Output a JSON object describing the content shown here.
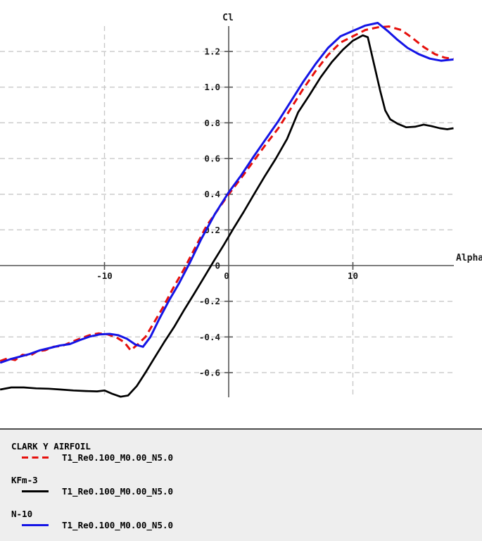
{
  "chart_data": {
    "type": "line",
    "title": "",
    "xlabel": "Alpha",
    "ylabel": "Cl",
    "xlim": [
      -18.4,
      18.2
    ],
    "ylim": [
      -0.88,
      1.49
    ],
    "grid": "dashed",
    "legend_position": "bottom",
    "axis_color": "#555555",
    "grid_color": "#c9c9c9",
    "x_ticks": [
      {
        "v": -10,
        "label": "-10"
      },
      {
        "v": 0,
        "label": "0"
      },
      {
        "v": 10,
        "label": "10"
      }
    ],
    "y_ticks": [
      {
        "v": 1.2,
        "label": "1.2"
      },
      {
        "v": 1.0,
        "label": "1.0"
      },
      {
        "v": 0.8,
        "label": "0.8"
      },
      {
        "v": 0.6,
        "label": "0.6"
      },
      {
        "v": 0.4,
        "label": "0.4"
      },
      {
        "v": 0.2,
        "label": "0.2"
      },
      {
        "v": 0,
        "label": "0"
      },
      {
        "v": -0.2,
        "label": "-0.2"
      },
      {
        "v": -0.4,
        "label": "-0.4"
      },
      {
        "v": -0.6,
        "label": "-0.6"
      }
    ],
    "series": [
      {
        "name": "CLARK Y AIRFOIL",
        "polar": "T1_Re0.100_M0.00_N5.0",
        "color": "#e6100c",
        "style": "dashed",
        "width": 3,
        "points": [
          [
            -18.4,
            -0.535
          ],
          [
            -17.8,
            -0.52
          ],
          [
            -17.2,
            -0.53
          ],
          [
            -16.6,
            -0.5
          ],
          [
            -16.0,
            -0.505
          ],
          [
            -15.4,
            -0.48
          ],
          [
            -14.8,
            -0.475
          ],
          [
            -14.1,
            -0.455
          ],
          [
            -13.4,
            -0.45
          ],
          [
            -12.7,
            -0.43
          ],
          [
            -12.0,
            -0.41
          ],
          [
            -11.2,
            -0.39
          ],
          [
            -10.5,
            -0.38
          ],
          [
            -9.8,
            -0.385
          ],
          [
            -9.1,
            -0.4
          ],
          [
            -8.4,
            -0.43
          ],
          [
            -7.9,
            -0.475
          ],
          [
            -7.3,
            -0.44
          ],
          [
            -6.7,
            -0.4
          ],
          [
            -6.1,
            -0.33
          ],
          [
            -5.3,
            -0.235
          ],
          [
            -4.5,
            -0.13
          ],
          [
            -3.6,
            -0.02
          ],
          [
            -2.7,
            0.1
          ],
          [
            -1.8,
            0.22
          ],
          [
            -0.9,
            0.31
          ],
          [
            0,
            0.4
          ],
          [
            1,
            0.49
          ],
          [
            2,
            0.585
          ],
          [
            3,
            0.68
          ],
          [
            4,
            0.77
          ],
          [
            5,
            0.88
          ],
          [
            6,
            0.99
          ],
          [
            7,
            1.09
          ],
          [
            8,
            1.18
          ],
          [
            9,
            1.25
          ],
          [
            10,
            1.285
          ],
          [
            11,
            1.32
          ],
          [
            12,
            1.335
          ],
          [
            12.9,
            1.34
          ],
          [
            13.9,
            1.32
          ],
          [
            14.8,
            1.275
          ],
          [
            15.7,
            1.225
          ],
          [
            16.6,
            1.185
          ],
          [
            17.4,
            1.165
          ],
          [
            18.1,
            1.158
          ]
        ]
      },
      {
        "name": "KFm-3",
        "polar": "T1_Re0.100_M0.00_N5.0",
        "color": "#000000",
        "style": "solid",
        "width": 2.7,
        "points": [
          [
            -18.4,
            -0.695
          ],
          [
            -17.5,
            -0.683
          ],
          [
            -16.5,
            -0.683
          ],
          [
            -15.5,
            -0.688
          ],
          [
            -14.5,
            -0.69
          ],
          [
            -13.5,
            -0.695
          ],
          [
            -12.5,
            -0.7
          ],
          [
            -11.5,
            -0.703
          ],
          [
            -10.6,
            -0.705
          ],
          [
            -10.0,
            -0.7
          ],
          [
            -9.4,
            -0.718
          ],
          [
            -8.7,
            -0.735
          ],
          [
            -8.1,
            -0.728
          ],
          [
            -7.4,
            -0.675
          ],
          [
            -6.7,
            -0.6
          ],
          [
            -6.0,
            -0.52
          ],
          [
            -5.2,
            -0.43
          ],
          [
            -4.4,
            -0.345
          ],
          [
            -3.6,
            -0.25
          ],
          [
            -2.8,
            -0.16
          ],
          [
            -2.0,
            -0.068
          ],
          [
            -1.2,
            0.025
          ],
          [
            -0.4,
            0.115
          ],
          [
            0.4,
            0.21
          ],
          [
            1.2,
            0.3
          ],
          [
            2.0,
            0.395
          ],
          [
            2.9,
            0.5
          ],
          [
            3.8,
            0.6
          ],
          [
            4.7,
            0.71
          ],
          [
            5.6,
            0.86
          ],
          [
            6.5,
            0.955
          ],
          [
            7.4,
            1.055
          ],
          [
            8.3,
            1.14
          ],
          [
            9.2,
            1.21
          ],
          [
            10.0,
            1.26
          ],
          [
            10.8,
            1.29
          ],
          [
            11.2,
            1.28
          ],
          [
            12.2,
            0.98
          ],
          [
            12.6,
            0.87
          ],
          [
            13.0,
            0.82
          ],
          [
            13.6,
            0.795
          ],
          [
            14.3,
            0.775
          ],
          [
            15.0,
            0.778
          ],
          [
            15.7,
            0.79
          ],
          [
            16.3,
            0.782
          ],
          [
            17.0,
            0.77
          ],
          [
            17.6,
            0.764
          ],
          [
            18.1,
            0.77
          ]
        ]
      },
      {
        "name": "N-10",
        "polar": "T1_Re0.100_M0.00_N5.0",
        "color": "#1414e6",
        "style": "solid",
        "width": 3,
        "points": [
          [
            -18.4,
            -0.545
          ],
          [
            -17.6,
            -0.525
          ],
          [
            -16.8,
            -0.51
          ],
          [
            -16.0,
            -0.495
          ],
          [
            -15.2,
            -0.475
          ],
          [
            -14.4,
            -0.462
          ],
          [
            -13.6,
            -0.448
          ],
          [
            -12.8,
            -0.44
          ],
          [
            -12.0,
            -0.418
          ],
          [
            -11.2,
            -0.398
          ],
          [
            -10.4,
            -0.386
          ],
          [
            -9.6,
            -0.383
          ],
          [
            -8.9,
            -0.39
          ],
          [
            -8.2,
            -0.41
          ],
          [
            -7.5,
            -0.443
          ],
          [
            -6.9,
            -0.455
          ],
          [
            -6.3,
            -0.4
          ],
          [
            -5.6,
            -0.3
          ],
          [
            -4.8,
            -0.195
          ],
          [
            -4.0,
            -0.1
          ],
          [
            -3.1,
            0.02
          ],
          [
            -2.2,
            0.15
          ],
          [
            -1.1,
            0.29
          ],
          [
            0,
            0.41
          ],
          [
            1,
            0.505
          ],
          [
            2,
            0.61
          ],
          [
            3,
            0.71
          ],
          [
            4,
            0.81
          ],
          [
            5,
            0.92
          ],
          [
            6,
            1.03
          ],
          [
            7,
            1.13
          ],
          [
            8,
            1.22
          ],
          [
            9,
            1.285
          ],
          [
            10,
            1.315
          ],
          [
            11,
            1.345
          ],
          [
            12,
            1.36
          ],
          [
            12.8,
            1.315
          ],
          [
            13.6,
            1.265
          ],
          [
            14.4,
            1.22
          ],
          [
            15.3,
            1.185
          ],
          [
            16.2,
            1.16
          ],
          [
            17.1,
            1.148
          ],
          [
            18.1,
            1.155
          ]
        ]
      }
    ]
  },
  "legend": {
    "items": [
      {
        "name": "CLARK Y AIRFOIL",
        "polar": "T1_Re0.100_M0.00_N5.0",
        "color": "#e6100c",
        "style": "dashed"
      },
      {
        "name": "KFm-3",
        "polar": "T1_Re0.100_M0.00_N5.0",
        "color": "#000000",
        "style": "solid"
      },
      {
        "name": "N-10",
        "polar": "T1_Re0.100_M0.00_N5.0",
        "color": "#1414e6",
        "style": "solid"
      }
    ]
  }
}
